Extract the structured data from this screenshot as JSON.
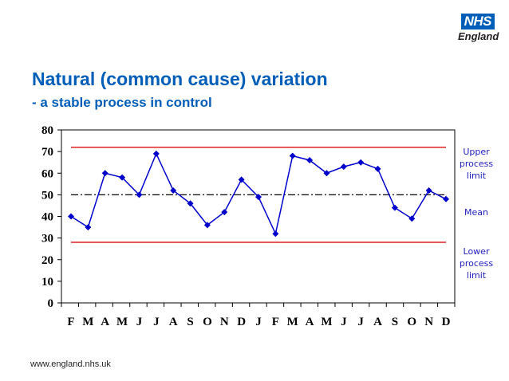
{
  "logo": {
    "badge": "NHS",
    "org": "England"
  },
  "header": {
    "title": "Natural (common cause) variation",
    "subtitle": "- a stable process in control"
  },
  "footer": {
    "url": "www.england.nhs.uk"
  },
  "colors": {
    "accent": "#005EB8",
    "series": "#0000CC",
    "limits": "#E02020",
    "mean": "#000000",
    "annotation": "#1F1FBF"
  },
  "chart_data": {
    "type": "line",
    "title": "",
    "xlabel": "",
    "ylabel": "",
    "ylim": [
      0,
      80
    ],
    "yticks": [
      0,
      10,
      20,
      30,
      40,
      50,
      60,
      70,
      80
    ],
    "categories": [
      "F",
      "M",
      "A",
      "M",
      "J",
      "J",
      "A",
      "S",
      "O",
      "N",
      "D",
      "J",
      "F",
      "M",
      "A",
      "M",
      "J",
      "J",
      "A",
      "S",
      "O",
      "N",
      "D"
    ],
    "series": [
      {
        "values": [
          40,
          35,
          60,
          58,
          50,
          69,
          52,
          46,
          36,
          42,
          57,
          49,
          32,
          68,
          66,
          60,
          63,
          65,
          62,
          44,
          39,
          52,
          48
        ]
      }
    ],
    "upper_limit": 72,
    "mean": 50,
    "lower_limit": 28,
    "annotations": {
      "upper": [
        "Upper",
        "process",
        "limit"
      ],
      "mean": [
        "Mean"
      ],
      "lower": [
        "Lower",
        "process",
        "limit"
      ]
    }
  }
}
